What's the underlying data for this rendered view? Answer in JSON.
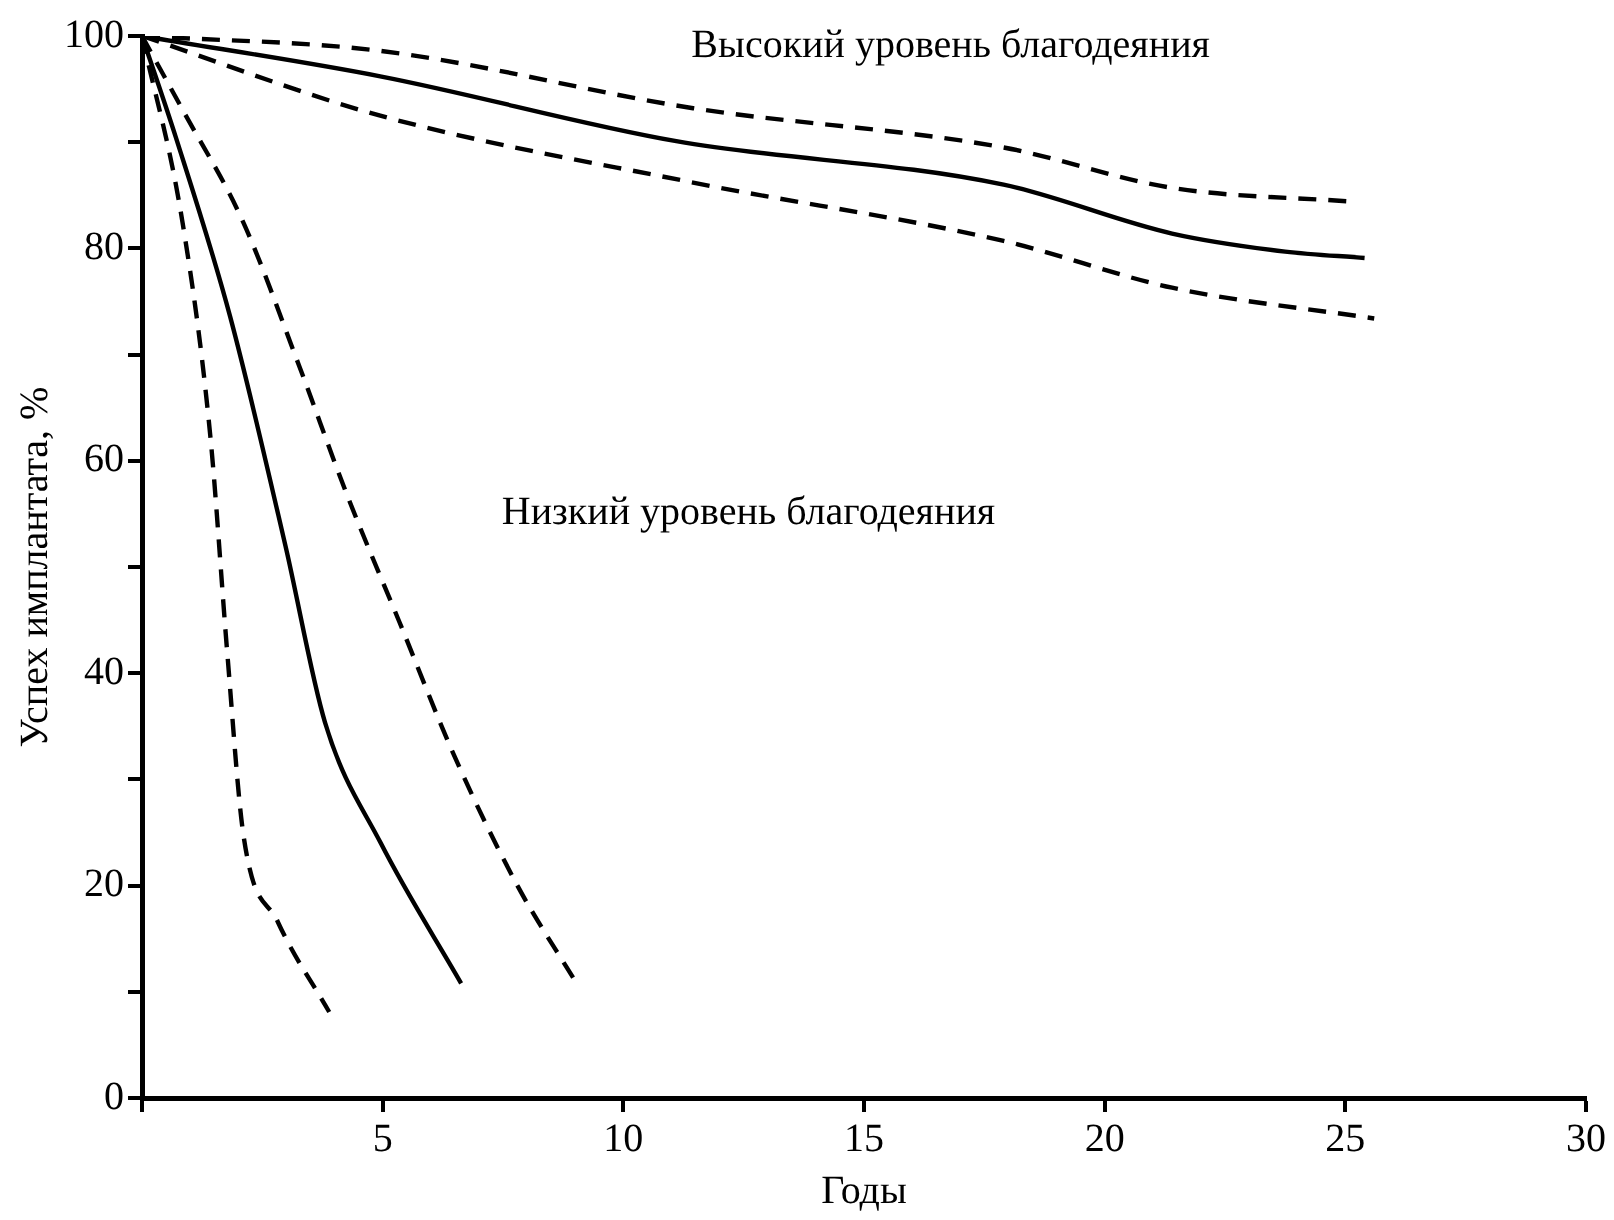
{
  "chart_data": {
    "type": "line",
    "xlabel": "Годы",
    "ylabel": "Успех имплантата, %",
    "xlim": [
      0,
      30
    ],
    "xticks": [
      {
        "value": 0,
        "label": null
      },
      5,
      10,
      15,
      20,
      25,
      30
    ],
    "ylim": [
      0,
      100
    ],
    "yticks": [
      0,
      {
        "value": 10,
        "label": null
      },
      20,
      {
        "value": 30,
        "label": null
      },
      40,
      {
        "value": 50,
        "label": null
      },
      60,
      {
        "value": 70,
        "label": null
      },
      80,
      {
        "value": 90,
        "label": null
      },
      100
    ],
    "grid": false,
    "legend": false,
    "marker": "none",
    "series": [
      {
        "color": "#000000",
        "line_style": "solid",
        "x": [
          0,
          4.95,
          11.1,
          17.9,
          21.4,
          23.75,
          25.4
        ],
        "values": [
          100,
          96.2,
          90.1,
          86,
          81.4,
          79.7,
          79.1
        ]
      },
      {
        "color": "#000000",
        "line_style": "dashed",
        "x": [
          0,
          4.95,
          11.45,
          17.9,
          21.4,
          25.15
        ],
        "values": [
          100,
          98.6,
          93.2,
          89.5,
          85.7,
          84.4
        ]
      },
      {
        "color": "#000000",
        "line_style": "dashed",
        "x": [
          0,
          4.95,
          11.45,
          17.9,
          21.4,
          25.6
        ],
        "values": [
          100,
          92.5,
          86.2,
          80.7,
          76.3,
          73.4
        ]
      },
      {
        "color": "#000000",
        "line_style": "solid",
        "x": [
          0,
          0.7,
          1.83,
          2.98,
          3.8,
          4.96,
          6.63
        ],
        "values": [
          100,
          90.5,
          73.6,
          52,
          35.4,
          24,
          10.8
        ]
      },
      {
        "color": "#000000",
        "line_style": "dashed",
        "x": [
          0,
          0.84,
          1.42,
          1.77,
          2.1,
          2.82,
          3.89
        ],
        "values": [
          100,
          82.5,
          62.3,
          42,
          25,
          16.6,
          8.1
        ]
      },
      {
        "color": "#000000",
        "line_style": "dashed",
        "x": [
          0,
          0.85,
          2.1,
          3.26,
          4.25,
          5.35,
          6.51,
          7.8,
          9.0
        ],
        "values": [
          100,
          93,
          82.5,
          69,
          56.9,
          44.8,
          32,
          20,
          11
        ]
      }
    ],
    "annotations": [
      "Высокий уровень благодеяния",
      "Низкий уровень благодеяния"
    ]
  }
}
